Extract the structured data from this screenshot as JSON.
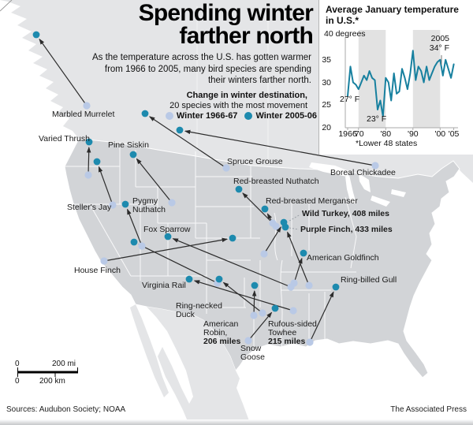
{
  "title": {
    "line1": "Spending winter",
    "line2": "farther north"
  },
  "intro": "As the temperature across the U.S. has gotten warmer from 1966 to 2005, many bird species are spending their winters farther north.",
  "legend": {
    "heading": "Change in winter destination,",
    "subheading": "20 species with the most movement",
    "item_1966": "Winter 1966-67",
    "item_2005": "Winter 2005-06"
  },
  "colors": {
    "dot_1966": "#b9c9e6",
    "dot_2005": "#1d8aae",
    "chart_line": "#17809f",
    "us_fill": "#d2d4d7",
    "neighbor_fill": "#e4e5e7",
    "arrow": "#2b2b2b",
    "band": "#e2e2e2"
  },
  "species": [
    {
      "name": "Marbled Murrelet",
      "lines": [
        {
          "t": "Marbled Murrelet"
        }
      ],
      "label": [
        66,
        140
      ],
      "from": [
        110,
        134
      ],
      "to": [
        46,
        44
      ]
    },
    {
      "name": "Varied Thrush",
      "lines": [
        {
          "t": "Varied Thrush"
        }
      ],
      "label": [
        49,
        171
      ],
      "from": [
        112,
        222
      ],
      "to": [
        113,
        180
      ]
    },
    {
      "name": "Pine Siskin",
      "lines": [
        {
          "t": "Pine Siskin"
        }
      ],
      "label": [
        137,
        179
      ],
      "from": [
        218,
        257
      ],
      "to": [
        169,
        196
      ]
    },
    {
      "name": "Spruce Grouse",
      "lines": [
        {
          "t": "Spruce Grouse"
        }
      ],
      "label": [
        288,
        200
      ],
      "from": [
        287,
        213
      ],
      "to": [
        184,
        144
      ]
    },
    {
      "name": "Boreal Chickadee",
      "lines": [
        {
          "t": "Boreal Chickadee"
        }
      ],
      "label": [
        419,
        214
      ],
      "from": [
        476,
        210
      ],
      "to": [
        228,
        165
      ]
    },
    {
      "name": "Red-breasted Nuthatch",
      "lines": [
        {
          "t": "Red-breasted Nuthatch"
        }
      ],
      "label": [
        296,
        225
      ],
      "from": [
        350,
        287
      ],
      "to": [
        303,
        240
      ]
    },
    {
      "name": "Red-breasted Merganser",
      "lines": [
        {
          "t": "Red-breasted Merganser"
        }
      ],
      "label": [
        337,
        250
      ],
      "from": [
        346,
        283
      ],
      "to": [
        336,
        265
      ]
    },
    {
      "name": "Wild Turkey",
      "lines": [
        {
          "t": "Wild Turkey, 408 miles",
          "b": 1
        }
      ],
      "label": [
        383,
        266
      ],
      "from": [
        335,
        322
      ],
      "to": [
        360,
        282
      ]
    },
    {
      "name": "Purple Finch",
      "lines": [
        {
          "t": "Purple Finch, 433 miles",
          "b": 1
        }
      ],
      "label": [
        381,
        286
      ],
      "from": [
        392,
        362
      ],
      "to": [
        362,
        288
      ]
    },
    {
      "name": "American Goldfinch",
      "lines": [
        {
          "t": "American Goldfinch"
        }
      ],
      "label": [
        389,
        322
      ],
      "from": [
        373,
        359
      ],
      "to": [
        385,
        321
      ]
    },
    {
      "name": "Ring-billed Gull",
      "lines": [
        {
          "t": "Ring-billed Gull"
        }
      ],
      "label": [
        432,
        350
      ],
      "from": [
        393,
        434
      ],
      "to": [
        426,
        364
      ]
    },
    {
      "name": "Steller's Jay",
      "lines": [
        {
          "t": "Steller's Jay"
        }
      ],
      "label": [
        85,
        258
      ],
      "from": [
        143,
        260
      ],
      "to": [
        123,
        205
      ]
    },
    {
      "name": "Pygmy Nuthatch",
      "lines": [
        {
          "t": "Pygmy"
        },
        {
          "t": "Nuthatch"
        }
      ],
      "label": [
        168,
        250
      ],
      "from": [
        180,
        312
      ],
      "to": [
        159,
        259
      ]
    },
    {
      "name": "Fox Sparrow",
      "lines": [
        {
          "t": "Fox Sparrow"
        }
      ],
      "label": [
        182,
        286
      ],
      "from": [
        369,
        364
      ],
      "to": [
        213,
        300
      ]
    },
    {
      "name": "House Finch",
      "lines": [
        {
          "t": "House Finch"
        }
      ],
      "label": [
        94,
        338
      ],
      "from": [
        132,
        331
      ],
      "to": [
        295,
        302
      ]
    },
    {
      "name": "Virginia Rail",
      "lines": [
        {
          "t": "Virginia Rail"
        }
      ],
      "label": [
        180,
        357
      ],
      "from": [
        372,
        394
      ],
      "to": [
        240,
        354
      ]
    },
    {
      "name": "Ring-necked Duck",
      "lines": [
        {
          "t": "Ring-necked"
        },
        {
          "t": "Duck"
        }
      ],
      "label": [
        223,
        383
      ],
      "from": [
        276,
        359
      ],
      "to": [
        170,
        307
      ]
    },
    {
      "name": "American Robin",
      "lines": [
        {
          "t": "American"
        },
        {
          "t": "Robin,"
        },
        {
          "t": "206 miles",
          "b": 1
        }
      ],
      "label": [
        258,
        406
      ],
      "from": [
        333,
        397
      ],
      "to": [
        278,
        354
      ]
    },
    {
      "name": "Snow Goose",
      "lines": [
        {
          "t": "Snow"
        },
        {
          "t": "Goose"
        }
      ],
      "label": [
        305,
        437
      ],
      "from": [
        322,
        400
      ],
      "to": [
        323,
        362
      ]
    },
    {
      "name": "Rufous-sided Towhee",
      "lines": [
        {
          "t": "Rufous-sided"
        },
        {
          "t": "Towhee"
        },
        {
          "t": "215 miles",
          "b": 1
        }
      ],
      "label": [
        340,
        406
      ],
      "from": [
        315,
        432
      ],
      "to": [
        349,
        391
      ]
    }
  ],
  "leaders": [
    {
      "from": [
        367,
        280
      ],
      "to": [
        381,
        272
      ]
    },
    {
      "from": [
        367,
        289
      ],
      "to": [
        379,
        291
      ]
    }
  ],
  "chart_data": {
    "type": "line",
    "title": "Average January temperature in U.S.*",
    "top_axis_label": "40 degrees",
    "y_tick_labels": [
      "35",
      "30",
      "25",
      "20"
    ],
    "y_tick_values": [
      35,
      30,
      25,
      20
    ],
    "x_ticks": [
      {
        "label": "1966",
        "year": 1966
      },
      {
        "label": "'70",
        "year": 1970
      },
      {
        "label": "'80",
        "year": 1980
      },
      {
        "label": "'90",
        "year": 1990
      },
      {
        "label": "'00",
        "year": 2000
      },
      {
        "label": "'05",
        "year": 2005
      }
    ],
    "ylim": [
      20,
      40
    ],
    "x": [
      1966,
      1967,
      1968,
      1969,
      1970,
      1971,
      1972,
      1973,
      1974,
      1975,
      1976,
      1977,
      1978,
      1979,
      1980,
      1981,
      1982,
      1983,
      1984,
      1985,
      1986,
      1987,
      1988,
      1989,
      1990,
      1991,
      1992,
      1993,
      1994,
      1995,
      1996,
      1997,
      1998,
      1999,
      2000,
      2001,
      2002,
      2003,
      2004,
      2005
    ],
    "values": [
      27,
      33.5,
      30,
      29.5,
      28.5,
      30,
      31.5,
      30.5,
      32.5,
      31,
      30.5,
      24,
      26,
      22.5,
      31,
      30,
      26,
      32,
      27.5,
      28,
      33,
      31,
      28.5,
      32,
      37,
      30.5,
      33.5,
      32.5,
      30,
      33.5,
      30.5,
      32,
      33.5,
      34.5,
      35,
      31.5,
      35,
      33,
      31,
      34
    ],
    "shaded_decades": [
      [
        1970,
        1980
      ],
      [
        1990,
        2000
      ]
    ],
    "annotations": {
      "start": "27° F",
      "low": "23° F",
      "end_year": "2005",
      "end_value": "34° F"
    },
    "footnote": "*Lower 48 states",
    "legend_position": "none",
    "grid": false
  },
  "scale_bar": {
    "mi_zero": "0",
    "mi_label": "200 mi",
    "km_zero": "0",
    "km_label": "200 km"
  },
  "footer": {
    "sources": "Sources: Audubon Society; NOAA",
    "credit": "The Associated Press"
  }
}
